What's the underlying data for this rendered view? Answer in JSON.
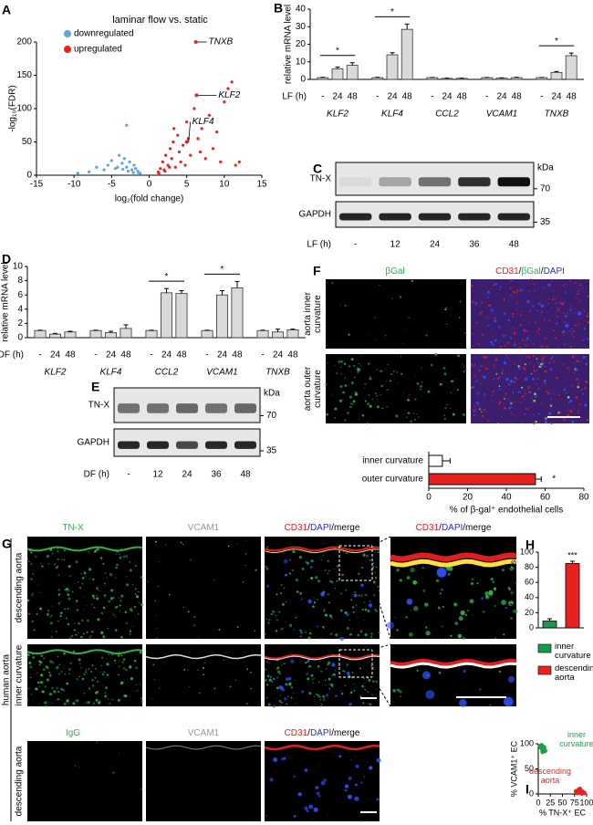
{
  "figure": {
    "panel_letters": [
      "A",
      "B",
      "C",
      "D",
      "E",
      "F",
      "G",
      "H",
      "I"
    ]
  },
  "chart_data": [
    {
      "type": "scatter",
      "title": "laminar flow vs. static",
      "xlabel": "log₂(fold change)",
      "ylabel": "-log₁₀(FDR)",
      "xlim": [
        -15,
        15
      ],
      "ylim": [
        0,
        200
      ],
      "xticks": [
        -15,
        -10,
        -5,
        0,
        5,
        10,
        15
      ],
      "yticks": [
        0,
        50,
        100,
        150,
        200
      ],
      "legend": "top-left",
      "series": [
        {
          "name": "downregulated",
          "color": "#5ba4e0",
          "x": [
            -1.2,
            -1.5,
            -1.8,
            -2,
            -2.3,
            -2.6,
            -3,
            -3.3,
            -3.6,
            -4,
            -4.5,
            -5,
            -5.5,
            -6,
            -7,
            -8,
            -9.5,
            -1.4,
            -2.1,
            -2.8,
            -3.5,
            -4.2,
            -3
          ],
          "values": [
            3,
            6,
            10,
            15,
            8,
            20,
            12,
            25,
            18,
            30,
            10,
            22,
            15,
            8,
            12,
            5,
            3,
            2,
            4,
            6,
            9,
            12,
            75
          ]
        },
        {
          "name": "upregulated",
          "color": "#e8231f",
          "x": [
            1.2,
            1.5,
            1.8,
            2,
            2.2,
            2.5,
            2.8,
            3,
            3.2,
            3.5,
            3.8,
            4,
            4.2,
            4.5,
            5,
            5.5,
            6,
            6.5,
            7,
            7.5,
            8,
            8.5,
            9,
            10,
            11,
            12,
            1.3,
            2.1,
            2.7,
            3.3,
            4.8,
            5.2,
            6.8,
            9.5,
            10.5,
            11.5
          ],
          "values": [
            5,
            10,
            20,
            8,
            30,
            15,
            40,
            25,
            50,
            12,
            60,
            35,
            20,
            45,
            80,
            30,
            100,
            55,
            70,
            25,
            90,
            40,
            65,
            110,
            140,
            20,
            3,
            6,
            12,
            70,
            15,
            55,
            35,
            20,
            130,
            15
          ]
        }
      ],
      "annotations": [
        {
          "label": "TNXB",
          "x": 6.2,
          "y": 200
        },
        {
          "label": "KLF2",
          "x": 6.3,
          "y": 120
        },
        {
          "label": "KLF4",
          "x": 5,
          "y": 50
        }
      ]
    },
    {
      "type": "bar",
      "ylabel": "relative mRNA level",
      "ylim": [
        0,
        40
      ],
      "yticks": [
        0,
        10,
        20,
        30,
        40
      ],
      "color": "#d9d9d9",
      "condition_label": "LF (h)",
      "groups": [
        "KLF2",
        "KLF4",
        "CCL2",
        "VCAM1",
        "TNXB"
      ],
      "conditions": [
        "-",
        "24",
        "48"
      ],
      "values": [
        [
          1,
          6,
          8
        ],
        [
          1,
          14,
          28.5
        ],
        [
          1,
          0.6,
          0.6
        ],
        [
          1,
          0.7,
          1
        ],
        [
          1,
          4,
          13.5
        ]
      ],
      "errors": [
        [
          0.2,
          1,
          1.5
        ],
        [
          0.2,
          1.2,
          3
        ],
        [
          0.1,
          0.1,
          0.1
        ],
        [
          0.1,
          0.2,
          0.2
        ],
        [
          0.1,
          0.5,
          1.5
        ]
      ],
      "significance": [
        "*",
        "*",
        null,
        null,
        "*"
      ]
    },
    {
      "type": "bar",
      "ylabel": "relative mRNA level",
      "ylim": [
        0,
        10
      ],
      "yticks": [
        0,
        2,
        4,
        6,
        8,
        10
      ],
      "color": "#d9d9d9",
      "condition_label": "DF (h)",
      "groups": [
        "KLF2",
        "KLF4",
        "CCL2",
        "VCAM1",
        "TNXB"
      ],
      "conditions": [
        "-",
        "24",
        "48"
      ],
      "values": [
        [
          1,
          0.5,
          0.8
        ],
        [
          1,
          0.7,
          1.3
        ],
        [
          1,
          6.3,
          6.2
        ],
        [
          1,
          6,
          7
        ],
        [
          1,
          0.8,
          1.1
        ]
      ],
      "errors": [
        [
          0.05,
          0.1,
          0.1
        ],
        [
          0.05,
          0.2,
          0.5
        ],
        [
          0.05,
          0.6,
          0.4
        ],
        [
          0.05,
          0.6,
          0.9
        ],
        [
          0.05,
          0.4,
          0.1
        ]
      ],
      "significance": [
        null,
        null,
        "*",
        "*",
        null
      ]
    },
    {
      "type": "bar",
      "orientation": "horizontal",
      "xlabel": "% of β-gal⁺ endothelial cells",
      "xlim": [
        0,
        80
      ],
      "xticks": [
        0,
        20,
        40,
        60,
        80
      ],
      "categories": [
        "inner curvature",
        "outer curvature"
      ],
      "values": [
        7,
        55
      ],
      "errors": [
        4,
        3
      ],
      "colors": [
        "#ffffff",
        "#e8231f"
      ],
      "significance": [
        null,
        "*"
      ]
    },
    {
      "type": "bar",
      "ylabel": "% of TN-X⁺ ECs",
      "ylim": [
        0,
        100
      ],
      "yticks": [
        0,
        20,
        40,
        60,
        80,
        100
      ],
      "categories": [
        "inner curvature",
        "descending aorta"
      ],
      "values": [
        9,
        85
      ],
      "errors": [
        3,
        3
      ],
      "colors": [
        "#1a9a4a",
        "#e8231f"
      ],
      "significance": [
        null,
        "***"
      ]
    },
    {
      "type": "scatter",
      "xlabel": "% TN-X⁺ EC",
      "ylabel": "% VCAM1⁺ EC",
      "xlim": [
        0,
        100
      ],
      "ylim": [
        0,
        100
      ],
      "xticks": [
        0,
        25,
        50,
        75,
        100
      ],
      "yticks": [
        0,
        50,
        100
      ],
      "legend": "inline",
      "series": [
        {
          "name": "inner curvature",
          "color": "#1aa04a",
          "x": [
            4,
            6,
            8,
            10,
            12,
            14,
            9,
            7
          ],
          "values": [
            95,
            92,
            90,
            88,
            93,
            86,
            84,
            97
          ]
        },
        {
          "name": "descending aorta",
          "color": "#e3241f",
          "x": [
            78,
            80,
            83,
            85,
            88,
            90,
            92,
            95,
            86
          ],
          "values": [
            5,
            2,
            8,
            3,
            6,
            1,
            4,
            2,
            10
          ]
        }
      ]
    }
  ],
  "blots": [
    {
      "rows": [
        "TN-X",
        "GAPDH"
      ],
      "unit": "kDa",
      "markers": [
        70,
        35
      ],
      "condition_label": "LF (h)",
      "lanes": [
        "-",
        "12",
        "24",
        "36",
        "48"
      ]
    },
    {
      "rows": [
        "TN-X",
        "GAPDH"
      ],
      "unit": "kDa",
      "markers": [
        70,
        35
      ],
      "condition_label": "DF (h)",
      "lanes": [
        "-",
        "12",
        "24",
        "36",
        "48"
      ]
    }
  ],
  "micrographs": {
    "F": {
      "columns": [
        [
          {
            "text": "βGal",
            "color": "#2db34a"
          }
        ],
        [
          {
            "text": "CD31",
            "color": "#e02020"
          },
          {
            "text": "/",
            "color": "#000000"
          },
          {
            "text": "βGal",
            "color": "#2db34a"
          },
          {
            "text": "/",
            "color": "#000000"
          },
          {
            "text": "DAPI",
            "color": "#2030c0"
          }
        ]
      ],
      "rows": [
        "aorta inner curvature",
        "aorta outer curvature"
      ]
    },
    "G": {
      "columns": [
        [
          {
            "text": "TN-X",
            "color": "#2db34a"
          }
        ],
        [
          {
            "text": "VCAM1",
            "color": "#999999"
          }
        ],
        [
          {
            "text": "CD31",
            "color": "#e02020"
          },
          {
            "text": "/",
            "color": "#000000"
          },
          {
            "text": "DAPI",
            "color": "#2030c0"
          },
          {
            "text": "/merge",
            "color": "#000000"
          }
        ],
        [
          {
            "text": "CD31",
            "color": "#e02020"
          },
          {
            "text": "/",
            "color": "#000000"
          },
          {
            "text": "DAPI",
            "color": "#2030c0"
          },
          {
            "text": "/merge",
            "color": "#000000"
          }
        ]
      ],
      "rows": [
        "descending aorta",
        "inner curvature"
      ],
      "group": "human aorta",
      "control_columns": [
        [
          {
            "text": "IgG",
            "color": "#2db34a"
          }
        ],
        [
          {
            "text": "VCAM1",
            "color": "#999999"
          }
        ],
        [
          {
            "text": "CD31",
            "color": "#e02020"
          },
          {
            "text": "/",
            "color": "#000000"
          },
          {
            "text": "DAPI",
            "color": "#2030c0"
          },
          {
            "text": "/merge",
            "color": "#000000"
          }
        ]
      ],
      "control_row": "descending aorta"
    }
  }
}
